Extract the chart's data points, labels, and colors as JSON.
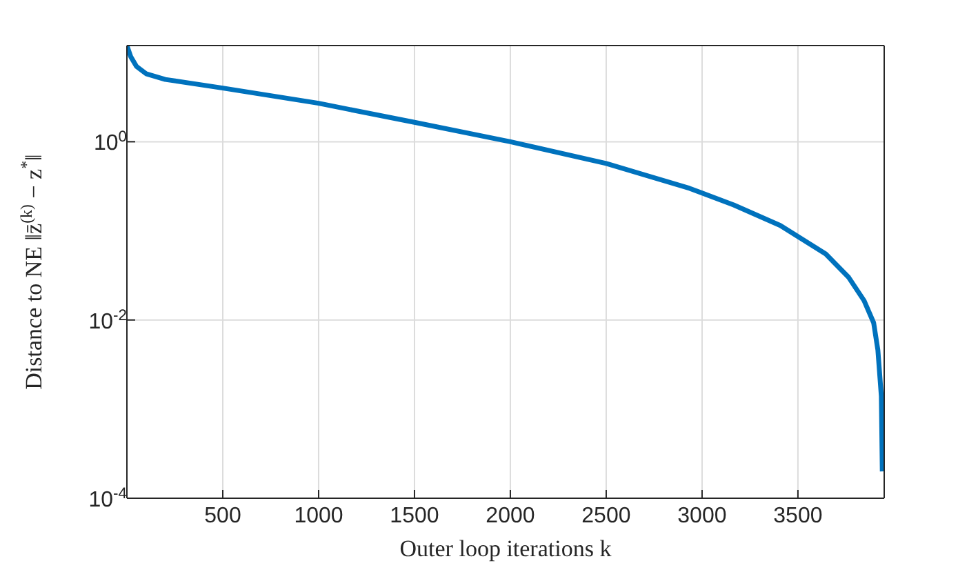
{
  "chart_data": {
    "type": "line",
    "xlabel": "Outer loop iterations k",
    "ylabel": "Distance to NE ‖z̄$^{(k)}$ − z$^{*}$‖",
    "x": [
      0,
      20,
      50,
      100,
      200,
      500,
      1000,
      1500,
      2000,
      2500,
      2935,
      3165,
      3408,
      3645,
      3765,
      3845,
      3895,
      3917,
      3935,
      3940
    ],
    "series": [
      {
        "color": "#0072bd",
        "values": [
          12,
          9,
          7,
          5.8,
          5.0,
          4.0,
          2.7,
          1.65,
          1.0,
          0.57,
          0.3,
          0.195,
          0.115,
          0.055,
          0.03,
          0.0165,
          0.0093,
          0.0046,
          0.0014,
          0.0002
        ]
      }
    ],
    "xlim": [
      0,
      3950
    ],
    "xticks": [
      500,
      1000,
      1500,
      2000,
      2500,
      3000,
      3500
    ],
    "ylim": [
      0.0001,
      12
    ],
    "yticks": [
      {
        "value": 0.0001,
        "label": "10$^{-4}$"
      },
      {
        "value": 0.01,
        "label": "10$^{-2}$"
      },
      {
        "value": 1,
        "label": "10$^{0}$"
      }
    ],
    "log": true,
    "grid": true,
    "marker": "none",
    "line_style": "solid"
  }
}
